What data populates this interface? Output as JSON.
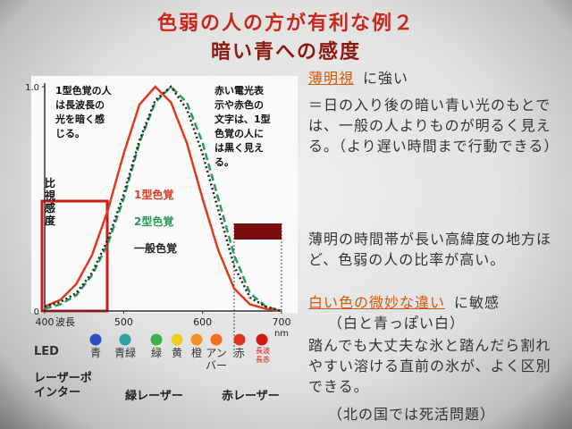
{
  "title": "色弱の人の方が有利な例２",
  "subtitle": "暗い青への感度",
  "chart_data": {
    "type": "line",
    "x": [
      400,
      420,
      440,
      460,
      480,
      500,
      520,
      540,
      560,
      580,
      600,
      620,
      640,
      660,
      680,
      700
    ],
    "xlim": [
      400,
      700
    ],
    "xticks": [
      400,
      500,
      600,
      700
    ],
    "x_label": "波長",
    "x_unit": "nm",
    "ylim": [
      0,
      1
    ],
    "yticks": [
      0,
      {
        "value": 1,
        "label": "1.0"
      }
    ],
    "y_label": "比視感度",
    "series": [
      {
        "name": "1型色覚",
        "color": "#e03a1e",
        "style": "solid",
        "values": [
          0.02,
          0.05,
          0.12,
          0.25,
          0.45,
          0.7,
          0.92,
          1.0,
          0.93,
          0.75,
          0.5,
          0.27,
          0.1,
          0.03,
          0.01,
          0
        ]
      },
      {
        "name": "2型色覚",
        "color": "#2a9a5a",
        "style": "dashed",
        "values": [
          0.01,
          0.03,
          0.07,
          0.16,
          0.3,
          0.5,
          0.75,
          0.93,
          1.0,
          0.93,
          0.75,
          0.5,
          0.25,
          0.08,
          0.02,
          0
        ]
      },
      {
        "name": "一般色覚",
        "color": "#222222",
        "style": "dotted",
        "values": [
          0.02,
          0.04,
          0.08,
          0.17,
          0.32,
          0.52,
          0.76,
          0.94,
          1.0,
          0.9,
          0.7,
          0.45,
          0.2,
          0.06,
          0.02,
          0
        ]
      }
    ],
    "annotations": [
      "1型色覚の人は長波長の光を暗く感じる。",
      "赤い電光表示や赤色の文字は、1型色覚の人には黒く見える。"
    ]
  },
  "leds": {
    "label": "LED",
    "items": [
      {
        "name": "青",
        "color": "#2a4fc0"
      },
      {
        "name": "青緑",
        "color": "#2aa0a0"
      },
      {
        "name": "緑",
        "color": "#3cb04a"
      },
      {
        "name": "黄",
        "color": "#e8d020"
      },
      {
        "name": "橙",
        "color": "#f09020"
      },
      {
        "name": "アンバー",
        "color": "#f07020"
      },
      {
        "name": "赤",
        "color": "#e03020"
      },
      {
        "name": "長波長赤",
        "color": "#d01818"
      }
    ]
  },
  "lasers": [
    "レーザーポインター",
    "緑レーザー",
    "赤レーザー"
  ],
  "notes": [
    {
      "highlight": "薄明視",
      "text": "に強い"
    },
    {
      "text": "＝日の入り後の暗い青い光のもとでは、一般の人よりものが明るく見える。（より遅い時間まで行動できる）"
    },
    {
      "text": "薄明の時間帯が長い高緯度の地方ほど、色弱の人の比率が高い。"
    },
    {
      "highlight": "白い色の微妙な違い",
      "text": "に敏感"
    },
    {
      "text": "（白と青っぽい白）"
    },
    {
      "text": "踏んでも大丈夫な氷と踏んだら割れやすい溶ける直前の氷が、よく区別できる。"
    },
    {
      "text": "（北の国では死活問題）"
    }
  ]
}
